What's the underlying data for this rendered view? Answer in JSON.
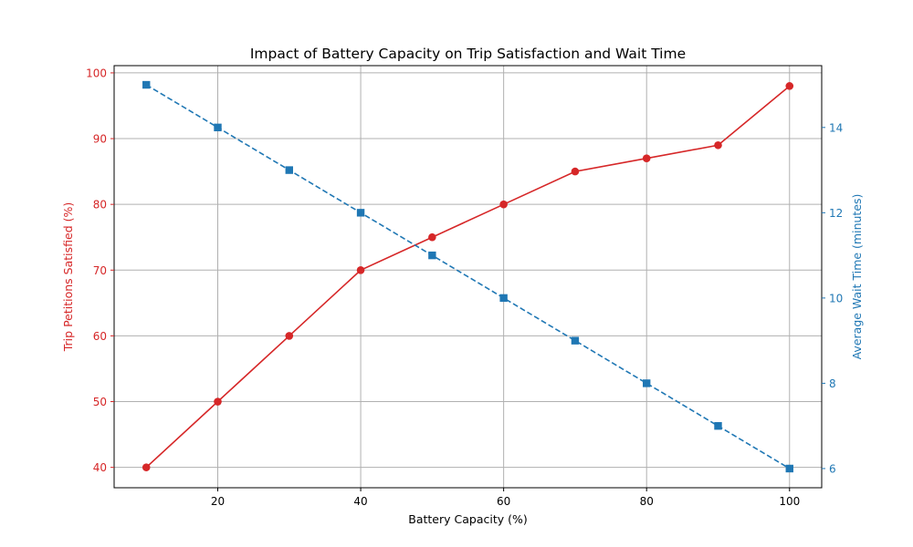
{
  "chart_data": {
    "type": "line",
    "title": "Impact of Battery Capacity on Trip Satisfaction and Wait Time",
    "xlabel": "Battery Capacity (%)",
    "ylabel_left": "Trip Petitions Satisfied (%)",
    "ylabel_right": "Average Wait Time (minutes)",
    "x": [
      10,
      20,
      30,
      40,
      50,
      60,
      70,
      80,
      90,
      100
    ],
    "xlim": [
      5.5,
      104.5
    ],
    "ylim_left": [
      36.9,
      101.1
    ],
    "ylim_right": [
      5.55,
      15.45
    ],
    "xticks": [
      20,
      40,
      60,
      80,
      100
    ],
    "yticks_left": [
      40,
      50,
      60,
      70,
      80,
      90,
      100
    ],
    "yticks_right": [
      6,
      8,
      10,
      12,
      14
    ],
    "grid": true,
    "series": [
      {
        "axis": "left",
        "values": [
          40,
          50,
          60,
          70,
          75,
          80,
          85,
          87,
          89,
          98
        ],
        "color": "#d62728",
        "marker": "circle",
        "linestyle": "solid"
      },
      {
        "axis": "right",
        "values": [
          15,
          14,
          13,
          12,
          11,
          10,
          9,
          8,
          7,
          6
        ],
        "color": "#1f77b4",
        "marker": "square",
        "linestyle": "dashed"
      }
    ]
  }
}
